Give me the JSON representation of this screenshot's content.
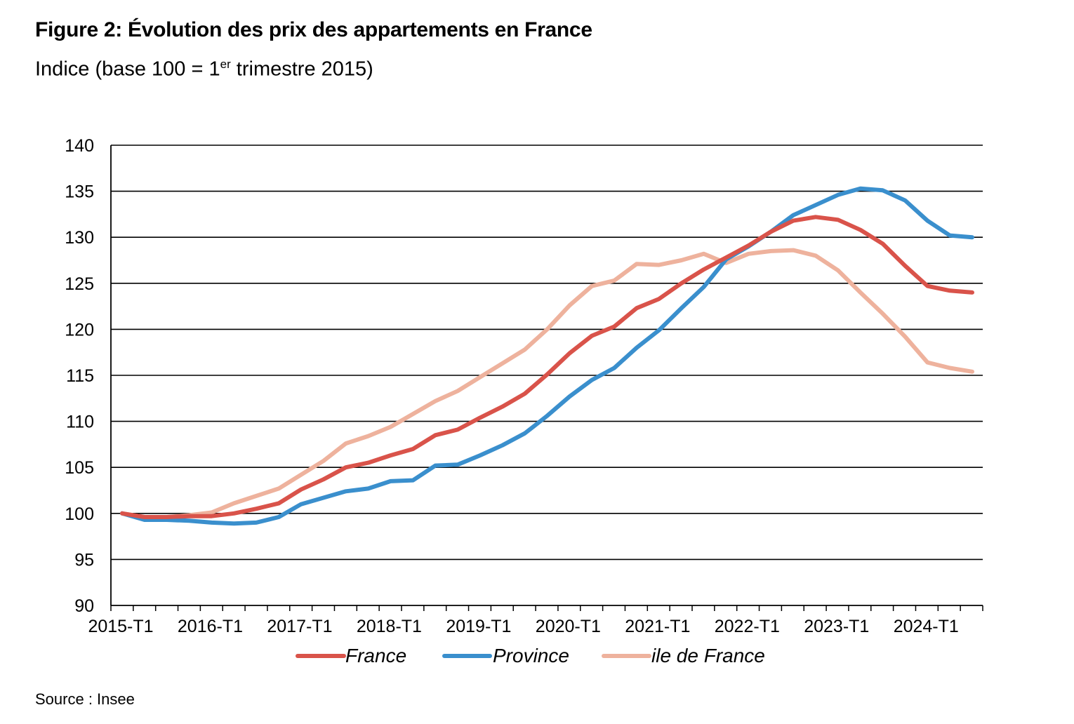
{
  "title": "Figure 2: Évolution des prix des appartements en France",
  "subtitle": {
    "before": "Indice (base 100 = 1",
    "sup": "er",
    "after": " trimestre 2015)"
  },
  "source": "Source : Insee",
  "chart_data": {
    "type": "line",
    "ylim": [
      90,
      140
    ],
    "y_ticks": [
      90,
      95,
      100,
      105,
      110,
      115,
      120,
      125,
      130,
      135,
      140
    ],
    "x_tick_labels": [
      "2015-T1",
      "2016-T1",
      "2017-T1",
      "2018-T1",
      "2019-T1",
      "2020-T1",
      "2021-T1",
      "2022-T1",
      "2023-T1",
      "2024-T1"
    ],
    "x_quarters": [
      "2015-T1",
      "2015-T2",
      "2015-T3",
      "2015-T4",
      "2016-T1",
      "2016-T2",
      "2016-T3",
      "2016-T4",
      "2017-T1",
      "2017-T2",
      "2017-T3",
      "2017-T4",
      "2018-T1",
      "2018-T2",
      "2018-T3",
      "2018-T4",
      "2019-T1",
      "2019-T2",
      "2019-T3",
      "2019-T4",
      "2020-T1",
      "2020-T2",
      "2020-T3",
      "2020-T4",
      "2021-T1",
      "2021-T2",
      "2021-T3",
      "2021-T4",
      "2022-T1",
      "2022-T2",
      "2022-T3",
      "2022-T4",
      "2023-T1",
      "2023-T2",
      "2023-T3",
      "2023-T4",
      "2024-T1",
      "2024-T2",
      "2024-T3"
    ],
    "grid": true,
    "legend_position": "bottom",
    "series": [
      {
        "name": "France",
        "color": "#d9534a",
        "values": [
          100,
          99.6,
          99.6,
          99.7,
          99.7,
          100.0,
          100.5,
          101.1,
          102.6,
          103.7,
          105.0,
          105.5,
          106.3,
          107.0,
          108.5,
          109.1,
          110.4,
          111.6,
          113.0,
          115.1,
          117.4,
          119.3,
          120.3,
          122.3,
          123.3,
          125.0,
          126.5,
          127.8,
          129.1,
          130.6,
          131.8,
          132.2,
          131.9,
          130.8,
          129.3,
          126.9,
          124.7,
          124.2,
          124.0
        ]
      },
      {
        "name": "Province",
        "color": "#3a8fcd",
        "values": [
          100,
          99.3,
          99.3,
          99.2,
          99.0,
          98.9,
          99.0,
          99.6,
          101.0,
          101.7,
          102.4,
          102.7,
          103.5,
          103.6,
          105.2,
          105.3,
          106.3,
          107.4,
          108.7,
          110.6,
          112.7,
          114.5,
          115.8,
          118.0,
          119.9,
          122.3,
          124.6,
          127.6,
          129.0,
          130.6,
          132.4,
          133.5,
          134.6,
          135.3,
          135.1,
          134.0,
          131.8,
          130.2,
          130.0
        ]
      },
      {
        "name": "ile de France",
        "color": "#eeb29d",
        "values": [
          100,
          99.6,
          99.6,
          99.8,
          100.1,
          101.1,
          101.9,
          102.7,
          104.2,
          105.7,
          107.6,
          108.4,
          109.4,
          110.8,
          112.2,
          113.3,
          114.8,
          116.3,
          117.8,
          120.0,
          122.6,
          124.7,
          125.3,
          127.1,
          127.0,
          127.5,
          128.2,
          127.2,
          128.2,
          128.5,
          128.6,
          128.0,
          126.4,
          124.0,
          121.7,
          119.2,
          116.4,
          115.8,
          115.4
        ]
      }
    ]
  }
}
